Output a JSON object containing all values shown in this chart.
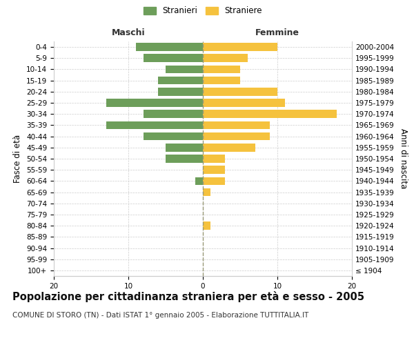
{
  "age_groups": [
    "100+",
    "95-99",
    "90-94",
    "85-89",
    "80-84",
    "75-79",
    "70-74",
    "65-69",
    "60-64",
    "55-59",
    "50-54",
    "45-49",
    "40-44",
    "35-39",
    "30-34",
    "25-29",
    "20-24",
    "15-19",
    "10-14",
    "5-9",
    "0-4"
  ],
  "birth_years": [
    "≤ 1904",
    "1905-1909",
    "1910-1914",
    "1915-1919",
    "1920-1924",
    "1925-1929",
    "1930-1934",
    "1935-1939",
    "1940-1944",
    "1945-1949",
    "1950-1954",
    "1955-1959",
    "1960-1964",
    "1965-1969",
    "1970-1974",
    "1975-1979",
    "1980-1984",
    "1985-1989",
    "1990-1994",
    "1995-1999",
    "2000-2004"
  ],
  "maschi": [
    0,
    0,
    0,
    0,
    0,
    0,
    0,
    0,
    1,
    0,
    5,
    5,
    8,
    13,
    8,
    13,
    6,
    6,
    5,
    8,
    9
  ],
  "femmine": [
    0,
    0,
    0,
    0,
    1,
    0,
    0,
    1,
    3,
    3,
    3,
    7,
    9,
    9,
    18,
    11,
    10,
    5,
    5,
    6,
    10
  ],
  "maschi_color": "#6d9e5a",
  "femmine_color": "#f5c23e",
  "bar_height": 0.72,
  "title": "Popolazione per cittadinanza straniera per età e sesso - 2005",
  "subtitle": "COMUNE DI STORO (TN) - Dati ISTAT 1° gennaio 2005 - Elaborazione TUTTITALIA.IT",
  "xlabel_left": "Maschi",
  "xlabel_right": "Femmine",
  "ylabel_left": "Fasce di età",
  "ylabel_right": "Anni di nascita",
  "legend_maschi": "Stranieri",
  "legend_femmine": "Straniere",
  "background_color": "#ffffff",
  "grid_color": "#cccccc",
  "xtick_vals": [
    -20,
    -10,
    0,
    10,
    20
  ],
  "title_fontsize": 10.5,
  "subtitle_fontsize": 7.5,
  "axis_label_fontsize": 8.5,
  "tick_fontsize": 7.5,
  "header_fontsize": 9
}
